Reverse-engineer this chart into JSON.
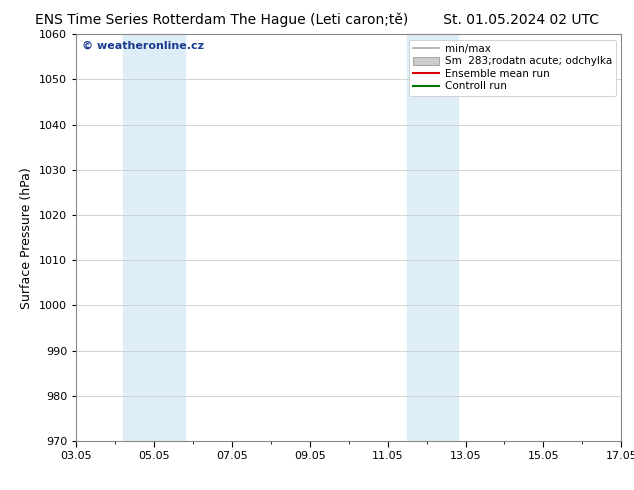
{
  "title": "ENS Time Series Rotterdam The Hague (Leti caron;tě)",
  "date_label": "St. 01.05.2024 02 UTC",
  "ylabel": "Surface Pressure (hPa)",
  "ylim": [
    970,
    1060
  ],
  "yticks": [
    970,
    980,
    990,
    1000,
    1010,
    1020,
    1030,
    1040,
    1050,
    1060
  ],
  "xlim": [
    3,
    17
  ],
  "xtick_labels": [
    "03.05",
    "05.05",
    "07.05",
    "09.05",
    "11.05",
    "13.05",
    "15.05",
    "17.05"
  ],
  "xtick_positions": [
    3,
    5,
    7,
    9,
    11,
    13,
    15,
    17
  ],
  "shaded_regions": [
    {
      "xmin": 4.2,
      "xmax": 5.8,
      "color": "#ddeef8"
    },
    {
      "xmin": 11.5,
      "xmax": 12.8,
      "color": "#ddeef8"
    }
  ],
  "legend_entries": [
    {
      "label": "min/max",
      "type": "line",
      "color": "#aaaaaa",
      "lw": 1.2
    },
    {
      "label": "Sm  283;rodatn acute; odchylka",
      "type": "patch",
      "facecolor": "#cccccc",
      "edgecolor": "#999999"
    },
    {
      "label": "Ensemble mean run",
      "type": "line",
      "color": "#dd0000",
      "lw": 1.5
    },
    {
      "label": "Controll run",
      "type": "line",
      "color": "#007700",
      "lw": 1.5
    }
  ],
  "watermark_text": "© weatheronline.cz",
  "watermark_color": "#1a3a8f",
  "bg_color": "#ffffff",
  "plot_bg_color": "#ffffff",
  "grid_color": "#cccccc",
  "title_fontsize": 10,
  "date_fontsize": 10,
  "ylabel_fontsize": 9,
  "tick_fontsize": 8,
  "legend_fontsize": 7.5,
  "watermark_fontsize": 8
}
